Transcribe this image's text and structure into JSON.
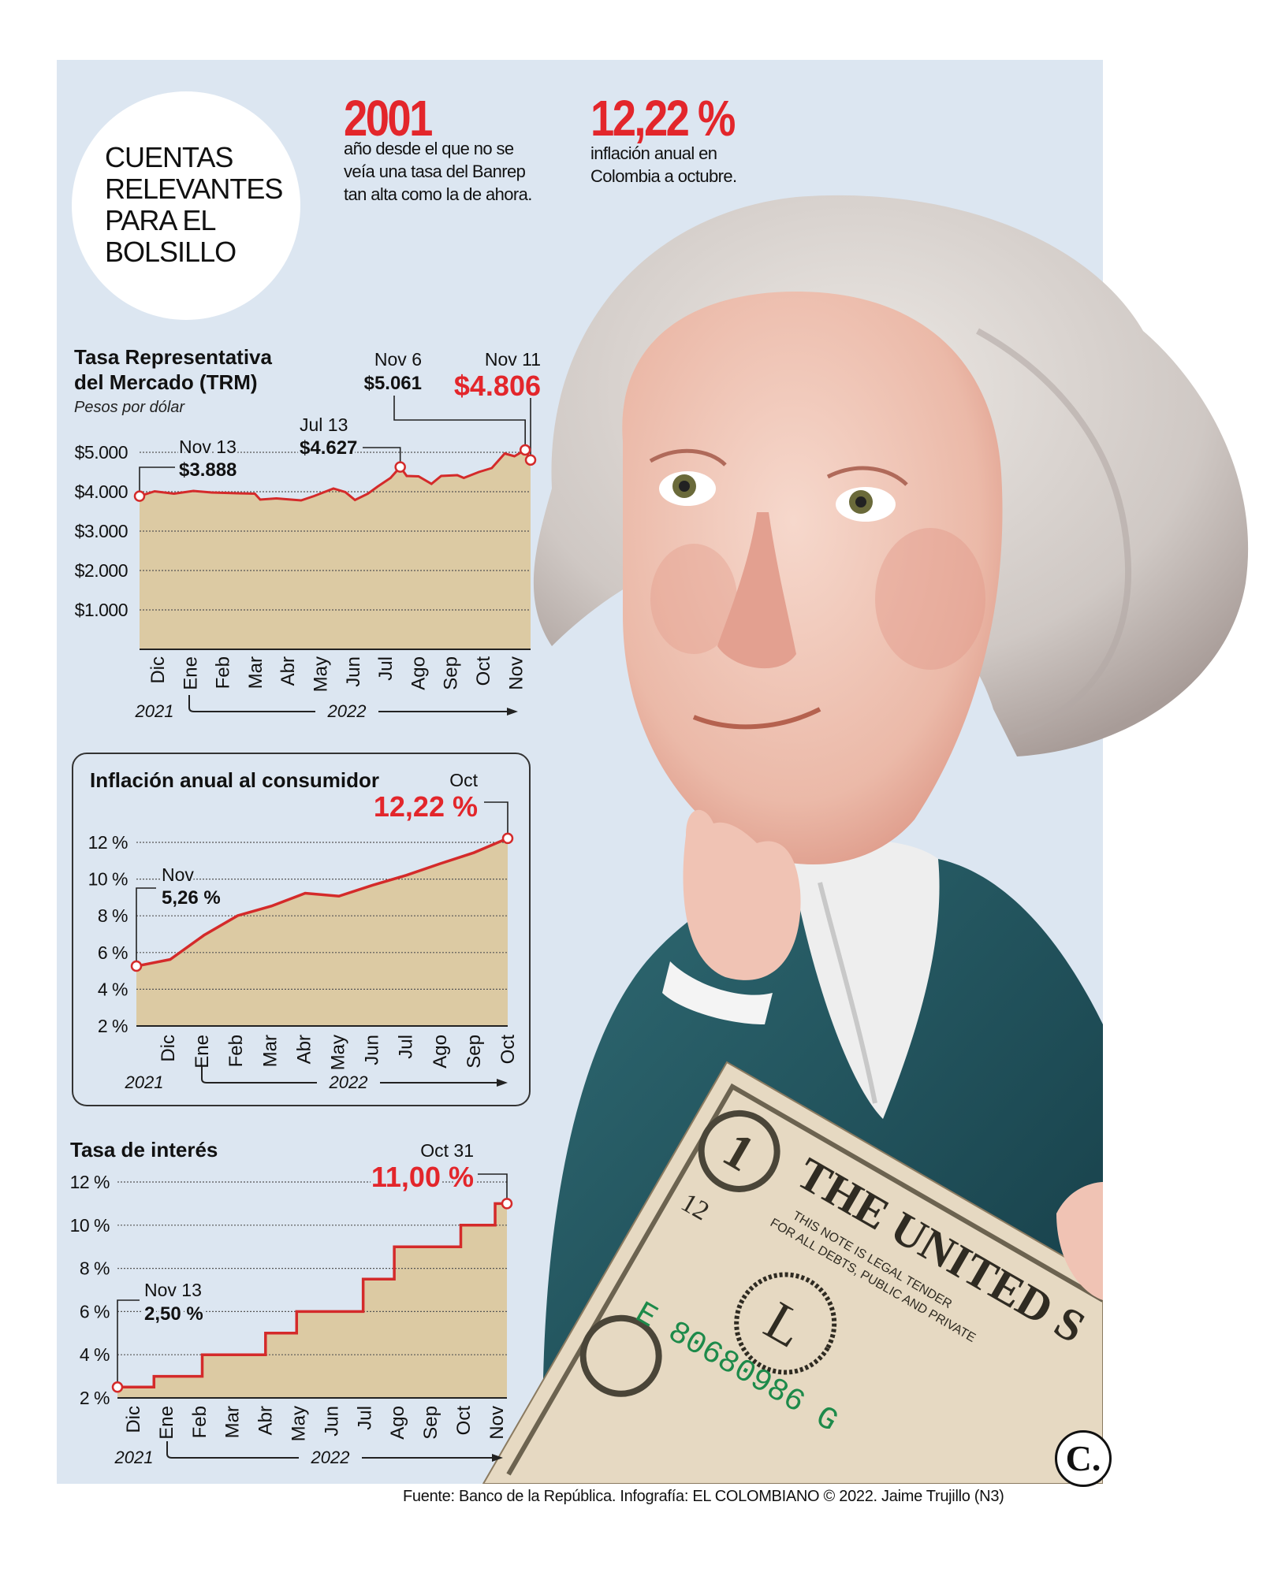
{
  "header": {
    "circle_title": "CUENTAS\nRELEVANTES\nPARA EL\nBOLSILLO",
    "stats": [
      {
        "value": "2001",
        "description": "año desde el que no se\nveía una tasa del Banrep\ntan alta como la de ahora."
      },
      {
        "value": "12,22 %",
        "description": "inflación anual en\nColombia a octubre."
      }
    ]
  },
  "colors": {
    "panel": "#dce6f1",
    "area_fill": "#dccaa3",
    "line": "#d42a2a",
    "highlight": "#e3262b"
  },
  "chart_data": [
    {
      "type": "area",
      "title_line1": "Tasa Representativa",
      "title_line2": "del Mercado (TRM)",
      "subtitle": "Pesos por dólar",
      "ylim": [
        0,
        5000
      ],
      "yticks": [
        1000,
        2000,
        3000,
        4000,
        5000
      ],
      "ytick_labels": [
        "$1.000",
        "$2.000",
        "$3.000",
        "$4.000",
        "$5.000"
      ],
      "xlim": [
        "2021-11-13",
        "2022-11-11"
      ],
      "month_labels": [
        "Dic",
        "Ene",
        "Feb",
        "Mar",
        "Abr",
        "May",
        "Jun",
        "Jul",
        "Ago",
        "Sep",
        "Oct",
        "Nov"
      ],
      "year_start": "2021",
      "year_next": "2022",
      "grid": true,
      "x": [
        "2021-11-13",
        "2021-11-27",
        "2021-12-15",
        "2022-01-02",
        "2022-01-19",
        "2022-02-12",
        "2022-02-28",
        "2022-03-05",
        "2022-03-20",
        "2022-04-12",
        "2022-04-24",
        "2022-05-12",
        "2022-05-23",
        "2022-06-01",
        "2022-06-13",
        "2022-06-22",
        "2022-07-04",
        "2022-07-13",
        "2022-07-19",
        "2022-07-30",
        "2022-08-11",
        "2022-08-20",
        "2022-09-04",
        "2022-09-10",
        "2022-09-24",
        "2022-10-06",
        "2022-10-18",
        "2022-10-27",
        "2022-11-06",
        "2022-11-11"
      ],
      "y": [
        3888,
        4010,
        3950,
        4020,
        3980,
        3960,
        3950,
        3800,
        3830,
        3780,
        3890,
        4080,
        3990,
        3790,
        3950,
        4130,
        4350,
        4627,
        4400,
        4390,
        4200,
        4400,
        4420,
        4350,
        4500,
        4600,
        4970,
        4900,
        5061,
        4806
      ],
      "annotations": [
        {
          "date": "Nov 13",
          "value": "$3.888",
          "x": "2021-11-13",
          "y": 3888
        },
        {
          "date": "Jul 13",
          "value": "$4.627",
          "x": "2022-07-13",
          "y": 4627
        },
        {
          "date": "Nov 6",
          "value": "$5.061",
          "x": "2022-11-06",
          "y": 5061
        },
        {
          "date": "Nov 11",
          "value": "$4.806",
          "x": "2022-11-11",
          "y": 4806,
          "highlight": true
        }
      ]
    },
    {
      "type": "area",
      "title": "Inflación anual al consumidor",
      "ylim": [
        2,
        12.5
      ],
      "yticks": [
        2,
        4,
        6,
        8,
        10,
        12
      ],
      "ytick_labels": [
        "2 %",
        "4 %",
        "6 %",
        "8 %",
        "10 %",
        "12 %"
      ],
      "categories": [
        "Nov",
        "Dic",
        "Ene",
        "Feb",
        "Mar",
        "Abr",
        "May",
        "Jun",
        "Jul",
        "Ago",
        "Sep",
        "Oct"
      ],
      "month_labels": [
        "Dic",
        "Ene",
        "Feb",
        "Mar",
        "Abr",
        "May",
        "Jun",
        "Jul",
        "Ago",
        "Sep",
        "Oct"
      ],
      "values": [
        5.26,
        5.62,
        6.94,
        8.01,
        8.53,
        9.23,
        9.07,
        9.67,
        10.21,
        10.84,
        11.44,
        12.22
      ],
      "year_start": "2021",
      "year_next": "2022",
      "grid": true,
      "annotations": [
        {
          "date": "Nov",
          "value": "5,26 %",
          "index": 0
        },
        {
          "date": "Oct",
          "value": "12,22 %",
          "index": 11,
          "highlight": true
        }
      ]
    },
    {
      "type": "step",
      "title": "Tasa de interés",
      "ylim": [
        2,
        12
      ],
      "yticks": [
        2,
        4,
        6,
        8,
        10,
        12
      ],
      "ytick_labels": [
        "2 %",
        "4 %",
        "6 %",
        "8 %",
        "10 %",
        "12 %"
      ],
      "xlim": [
        "2021-11-13",
        "2022-11-11"
      ],
      "month_labels": [
        "Dic",
        "Ene",
        "Feb",
        "Mar",
        "Abr",
        "May",
        "Jun",
        "Jul",
        "Ago",
        "Sep",
        "Oct",
        "Nov"
      ],
      "year_start": "2021",
      "year_next": "2022",
      "grid": true,
      "x": [
        "2021-11-13",
        "2021-12-17",
        "2022-01-31",
        "2022-03-31",
        "2022-04-29",
        "2022-06-30",
        "2022-07-29",
        "2022-09-29",
        "2022-10-31"
      ],
      "y": [
        2.5,
        3,
        4,
        5,
        6,
        7.5,
        9,
        10,
        11
      ],
      "annotations": [
        {
          "date": "Nov 13",
          "value": "2,50 %"
        },
        {
          "date": "Oct 31",
          "value": "11,00 %",
          "highlight": true
        }
      ]
    }
  ],
  "illustration": {
    "bill_heading": "THE UNITED S",
    "bill_legal": "THIS NOTE IS LEGAL TENDER",
    "bill_legal2": "FOR ALL DEBTS, PUBLIC AND PRIVATE",
    "bill_serial": "E 80680986 G",
    "bill_digit": "1",
    "bill_seal_letter": "L",
    "bill_code": "12"
  },
  "footer": {
    "source": "Fuente: Banco de la República. Infografía: EL COLOMBIANO © 2022. Jaime Trujillo (N3)"
  },
  "logo": {
    "text": "C."
  }
}
